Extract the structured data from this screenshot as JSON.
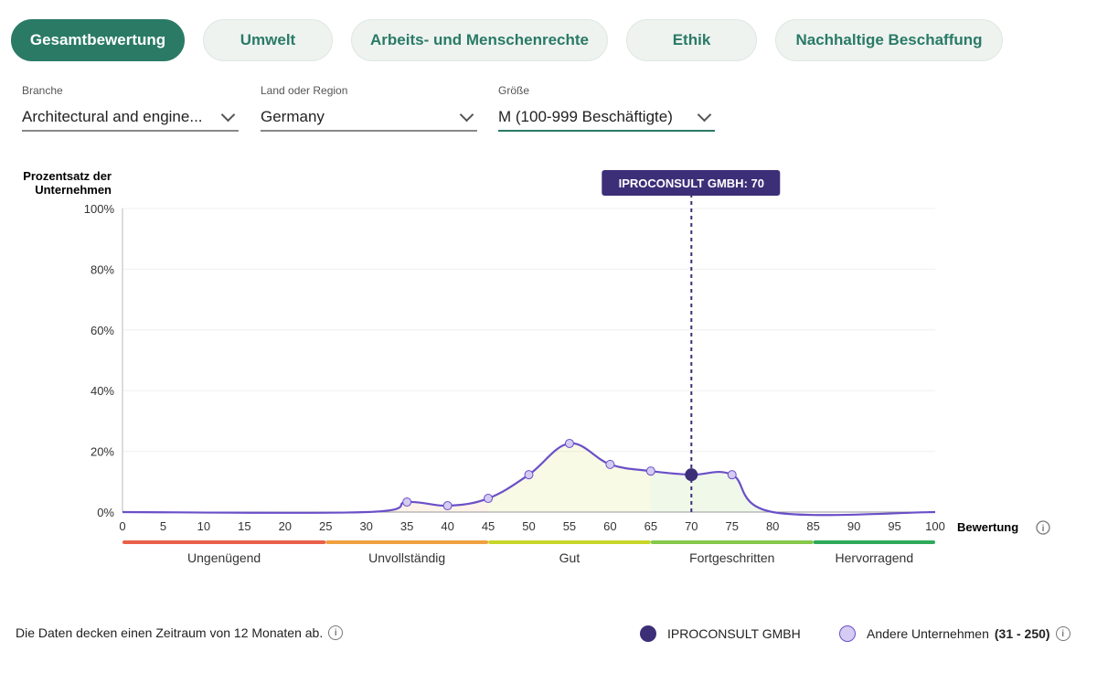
{
  "tabs": [
    {
      "label": "Gesamtbewertung",
      "active": true
    },
    {
      "label": "Umwelt"
    },
    {
      "label": "Arbeits- und Menschenrechte"
    },
    {
      "label": "Ethik"
    },
    {
      "label": "Nachhaltige Beschaffung"
    }
  ],
  "filters": [
    {
      "label": "Branche",
      "value": "Architectural and engine..."
    },
    {
      "label": "Land oder Region",
      "value": "Germany"
    },
    {
      "label": "Größe",
      "value": "M (100-999 Beschäftigte)"
    }
  ],
  "footer": {
    "note": "Die Daten decken einen Zeitraum von 12 Monaten ab.",
    "legend_company": "IPROCONSULT GMBH",
    "legend_others": "Andere Unternehmen",
    "legend_others_range": "(31 - 250)"
  },
  "chart_data": {
    "type": "area",
    "ylabel": "Prozentsatz der Unternehmen",
    "xlabel": "Bewertung",
    "xlim": [
      0,
      100
    ],
    "ylim": [
      0,
      100
    ],
    "xticks": [
      0,
      5,
      10,
      15,
      20,
      25,
      30,
      35,
      40,
      45,
      50,
      55,
      60,
      65,
      70,
      75,
      80,
      85,
      90,
      95,
      100
    ],
    "yticks": [
      {
        "v": 0,
        "label": "0%"
      },
      {
        "v": 20,
        "label": "20%"
      },
      {
        "v": 40,
        "label": "40%"
      },
      {
        "v": 60,
        "label": "60%"
      },
      {
        "v": 80,
        "label": "80%"
      },
      {
        "v": 100,
        "label": "100%"
      }
    ],
    "x": [
      0,
      30,
      35,
      40,
      45,
      50,
      55,
      60,
      65,
      70,
      75,
      80,
      100
    ],
    "y": [
      0,
      0,
      3.3,
      2.1,
      4.5,
      12.3,
      22.6,
      15.7,
      13.5,
      12.3,
      12.3,
      0,
      0
    ],
    "markers": [
      35,
      40,
      45,
      50,
      55,
      60,
      65,
      75
    ],
    "highlight": {
      "label": "IPROCONSULT GMBH: 70",
      "x": 70,
      "y": 12.3
    },
    "bands": [
      {
        "label": "Ungenügend",
        "from": 0,
        "to": 25,
        "color": "#e8604a"
      },
      {
        "label": "Unvollständig",
        "from": 25,
        "to": 45,
        "color": "#f0a040"
      },
      {
        "label": "Gut",
        "from": 45,
        "to": 65,
        "color": "#c8d62a"
      },
      {
        "label": "Fortgeschritten",
        "from": 65,
        "to": 85,
        "color": "#86c84a"
      },
      {
        "label": "Hervorragend",
        "from": 85,
        "to": 100,
        "color": "#2eaa5a"
      }
    ],
    "line_color": "#6b4fc8",
    "company_color": "#3c2f78",
    "other_color": "#d4ccf2"
  }
}
